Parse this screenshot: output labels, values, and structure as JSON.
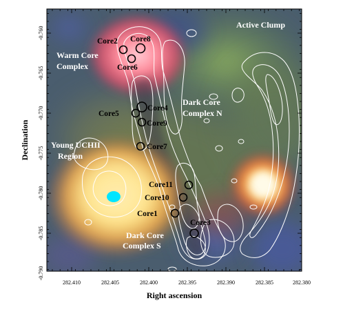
{
  "axes": {
    "xlabel": "Right ascension",
    "ylabel": "Declination",
    "xticks": [
      "282.410",
      "282.405",
      "282.400",
      "282.395",
      "282.390",
      "282.385",
      "282.380"
    ],
    "yticks": [
      "-0.760",
      "-0.765",
      "-0.770",
      "-0.775",
      "-0.780",
      "-0.785",
      "-0.790"
    ]
  },
  "regions": {
    "active_clump": "Active Clump",
    "warm_core_1": "Warm Core",
    "warm_core_2": "Complex",
    "dark_n_1": "Dark Core",
    "dark_n_2": "Complex N",
    "young_1": "Young UCHII",
    "young_2": "Region",
    "dark_s_1": "Dark Core",
    "dark_s_2": "Complex S"
  },
  "cores": {
    "core2": "Core2",
    "core8": "Core8",
    "core6": "Core6",
    "core5": "Core5",
    "core4": "Core4",
    "core9": "Core9",
    "core7": "Core7",
    "core11": "Core11",
    "core10": "Core10",
    "core1": "Core1",
    "core3": "Core3"
  },
  "colors": {
    "contour": "#ffffff",
    "core_marker": "#000000",
    "cyan_blob": "#00e5ff"
  }
}
